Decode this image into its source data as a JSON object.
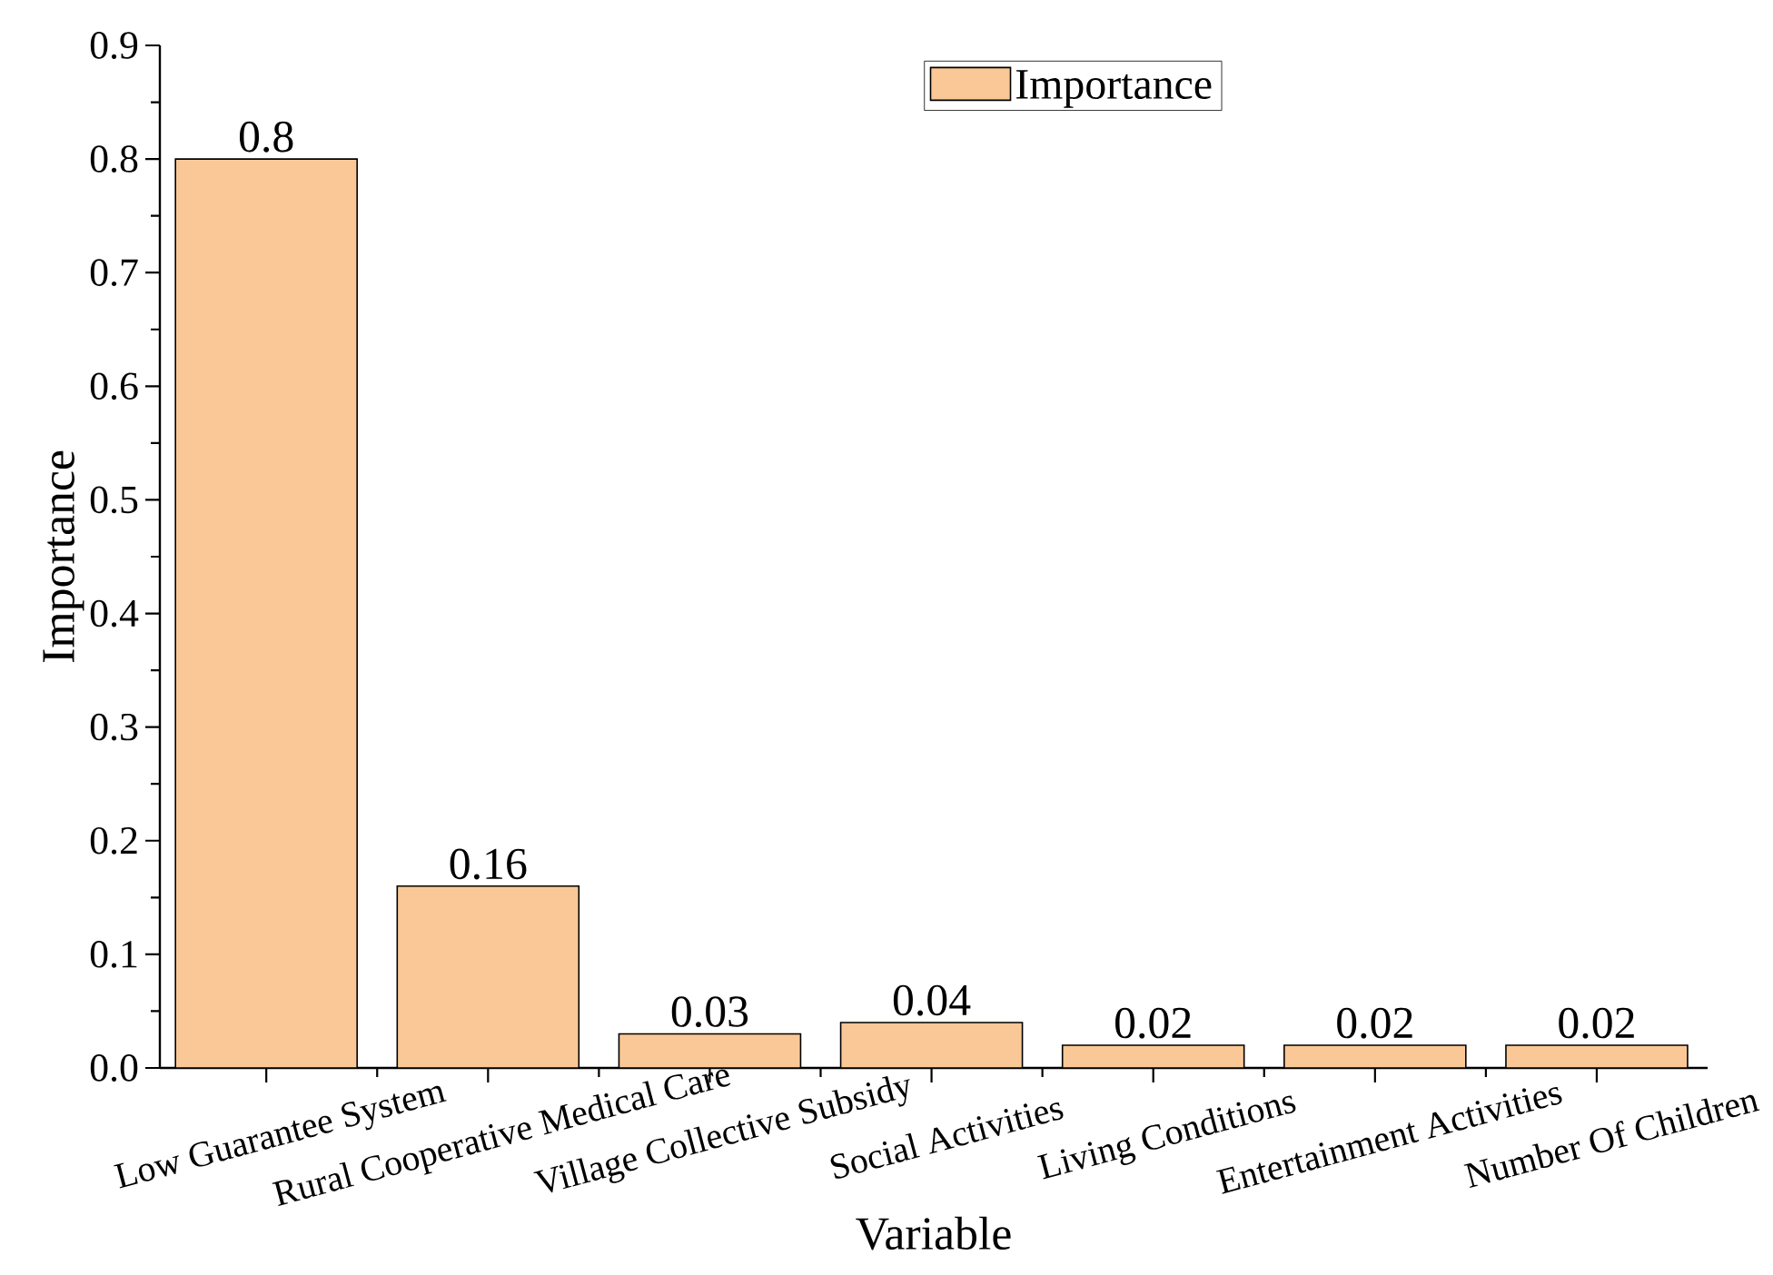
{
  "chart_data": {
    "type": "bar",
    "xlabel": "Variable",
    "ylabel": "Importance",
    "categories": [
      "Low Guarantee System",
      "Rural Cooperative Medical Care",
      "Village Collective Subsidy",
      "Social Activities",
      "Living Conditions",
      "Entertainment Activities",
      "Number Of Children"
    ],
    "series": [
      {
        "name": "Importance",
        "color": "#f9c896",
        "values": [
          0.8,
          0.16,
          0.03,
          0.04,
          0.02,
          0.02,
          0.02
        ]
      }
    ],
    "ylim": [
      0,
      0.9
    ],
    "yticks": [
      {
        "value": 0,
        "label": "0.0"
      },
      0.1,
      0.2,
      0.3,
      0.4,
      0.5,
      0.6,
      0.7,
      0.8,
      0.9
    ],
    "data_labels": true,
    "legend": "top",
    "grid": false
  }
}
